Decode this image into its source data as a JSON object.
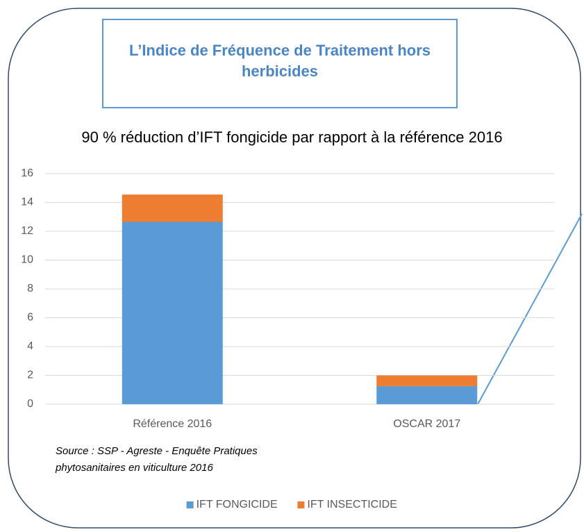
{
  "chart_data": {
    "type": "bar",
    "stacked": true,
    "title": "L’Indice de Fréquence de Traitement hors herbicides",
    "subtitle": "90 % réduction d’IFT fongicide par rapport à la référence 2016",
    "categories": [
      "Référence 2016",
      "OSCAR 2017"
    ],
    "series": [
      {
        "name": "IFT FONGICIDE",
        "color": "#5b9bd5",
        "values": [
          12.65,
          1.25
        ]
      },
      {
        "name": "IFT INSECTICIDE",
        "color": "#ed7d31",
        "values": [
          1.9,
          0.75
        ]
      }
    ],
    "ylim": [
      0,
      16
    ],
    "yticks": [
      0,
      2,
      4,
      6,
      8,
      10,
      12,
      14,
      16
    ],
    "grid": true,
    "legend": "bottom",
    "source": "Source : SSP - Agreste - Enquête Pratiques phytosanitaires en viticulture 2016"
  }
}
